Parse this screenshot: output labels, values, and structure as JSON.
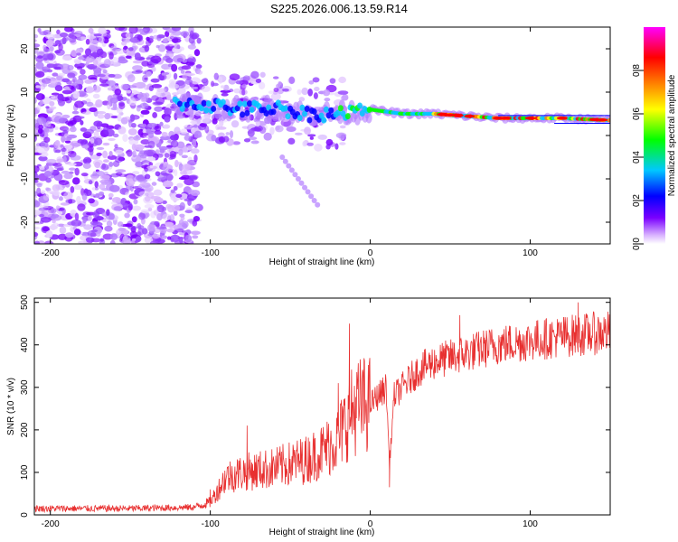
{
  "title": "S225.2026.006.13.59.R14",
  "chart_data": [
    {
      "type": "heatmap",
      "title": "S225.2026.006.13.59.R14",
      "xlabel": "Height of straight line (km)",
      "ylabel": "Frequency (Hz)",
      "xlim": [
        -210,
        150
      ],
      "ylim": [
        -25,
        25
      ],
      "x_ticks": [
        -200,
        -100,
        0,
        100
      ],
      "y_ticks": [
        -20,
        -10,
        0,
        10,
        20
      ],
      "colorbar": {
        "label": "Normalized spectral amplitude",
        "range": [
          0.0,
          1.0
        ],
        "ticks": [
          "0.0",
          "0.2",
          "0.4",
          "0.6",
          "0.8"
        ],
        "tick_values": [
          0.0,
          0.2,
          0.4,
          0.6,
          0.8
        ],
        "colors": [
          "#d9b3ff",
          "#7a00ff",
          "#0000ff",
          "#00c8ff",
          "#00ff00",
          "#ffff00",
          "#ff8000",
          "#ff0000",
          "#ff00ff"
        ]
      },
      "ridge_line": {
        "x": [
          -120,
          -100,
          -80,
          -60,
          -40,
          -20,
          0,
          20,
          40,
          60,
          80,
          100,
          120,
          150
        ],
        "y": [
          7.5,
          7,
          6,
          6.5,
          5,
          5,
          6,
          5,
          5,
          4.5,
          4,
          4,
          4,
          3.5
        ]
      }
    },
    {
      "type": "line",
      "xlabel": "Height of straight line (km)",
      "ylabel": "SNR (10 * v/v)",
      "xlim": [
        -210,
        150
      ],
      "ylim": [
        0,
        510
      ],
      "x_ticks": [
        -200,
        -100,
        0,
        100
      ],
      "y_ticks": [
        0,
        100,
        200,
        300,
        400,
        500
      ],
      "color": "#e83030",
      "trend": {
        "x": [
          -210,
          -150,
          -110,
          -100,
          -90,
          -80,
          -60,
          -40,
          -30,
          -20,
          -15,
          -10,
          -5,
          0,
          5,
          10,
          12,
          15,
          20,
          30,
          40,
          60,
          80,
          100,
          120,
          150
        ],
        "y": [
          15,
          15,
          18,
          30,
          90,
          100,
          110,
          130,
          150,
          180,
          220,
          250,
          260,
          260,
          280,
          300,
          120,
          280,
          300,
          340,
          360,
          380,
          400,
          410,
          420,
          430
        ]
      },
      "spikes": [
        {
          "x": -13,
          "y": 450
        },
        {
          "x": -100,
          "y": 60
        },
        {
          "x": -77,
          "y": 210
        },
        {
          "x": -20,
          "y": 310
        },
        {
          "x": 12,
          "y": 65
        },
        {
          "x": 56,
          "y": 470
        },
        {
          "x": 130,
          "y": 500
        }
      ]
    }
  ]
}
